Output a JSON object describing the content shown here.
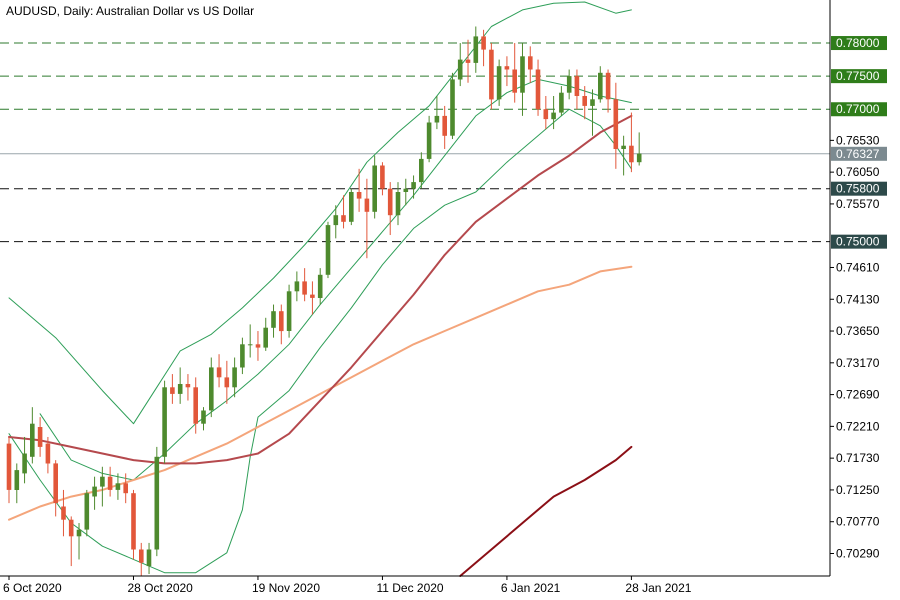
{
  "header": {
    "title": "AUDUSD, Daily:  Australian Dollar vs US Dollar"
  },
  "colors": {
    "bull": "#4e8a2e",
    "bear": "#e2573a",
    "bollinger": "#2e9e58",
    "ma_short": "#b5494d",
    "ma_mid": "#f4a57b",
    "ma_long": "#8b0f16",
    "level_line": "#2c7a2c",
    "level_tag_green": "#2f7d1a",
    "level_tag_dark": "#2d4a4a",
    "current_tag": "#7c8a90"
  },
  "chart_data": {
    "type": "candlestick",
    "symbol": "AUDUSD",
    "timeframe": "Daily",
    "ylim": [
      0.6995,
      0.7865
    ],
    "y_tick_labels": [
      "0.76530",
      "0.76050",
      "0.75570",
      "0.74610",
      "0.74130",
      "0.73650",
      "0.73170",
      "0.72690",
      "0.72210",
      "0.71730",
      "0.71250",
      "0.70770",
      "0.70290"
    ],
    "x_labels": [
      {
        "label": "6 Oct 2020",
        "index": 0
      },
      {
        "label": "28 Oct 2020",
        "index": 16
      },
      {
        "label": "19 Nov 2020",
        "index": 32
      },
      {
        "label": "11 Dec 2020",
        "index": 48
      },
      {
        "label": "6 Jan 2021",
        "index": 64
      },
      {
        "label": "28 Jan 2021",
        "index": 80
      }
    ],
    "level_lines": [
      {
        "label": "0.78000",
        "value": 0.78,
        "style": "green"
      },
      {
        "label": "0.77500",
        "value": 0.775,
        "style": "green"
      },
      {
        "label": "0.77000",
        "value": 0.77,
        "style": "green"
      },
      {
        "label": "0.75800",
        "value": 0.758,
        "style": "dark"
      },
      {
        "label": "0.75000",
        "value": 0.75,
        "style": "dark"
      }
    ],
    "current_price": {
      "label": "0.76327",
      "value": 0.76327
    },
    "candles": [
      [
        0.7195,
        0.7205,
        0.7105,
        0.7125
      ],
      [
        0.7125,
        0.7165,
        0.7105,
        0.7155
      ],
      [
        0.715,
        0.7205,
        0.7135,
        0.718
      ],
      [
        0.7175,
        0.725,
        0.7165,
        0.7225
      ],
      [
        0.722,
        0.7235,
        0.7175,
        0.719
      ],
      [
        0.7195,
        0.7205,
        0.715,
        0.7165
      ],
      [
        0.7165,
        0.717,
        0.7085,
        0.7105
      ],
      [
        0.71,
        0.7125,
        0.7055,
        0.708
      ],
      [
        0.708,
        0.7085,
        0.701,
        0.7055
      ],
      [
        0.7055,
        0.7075,
        0.702,
        0.7065
      ],
      [
        0.7065,
        0.7125,
        0.7055,
        0.712
      ],
      [
        0.7115,
        0.7145,
        0.7095,
        0.713
      ],
      [
        0.713,
        0.716,
        0.71,
        0.7145
      ],
      [
        0.7145,
        0.716,
        0.7115,
        0.7125
      ],
      [
        0.7125,
        0.715,
        0.711,
        0.7135
      ],
      [
        0.7135,
        0.715,
        0.7105,
        0.712
      ],
      [
        0.712,
        0.7125,
        0.702,
        0.7035
      ],
      [
        0.7035,
        0.7045,
        0.6995,
        0.7015
      ],
      [
        0.701,
        0.7045,
        0.6998,
        0.7035
      ],
      [
        0.7035,
        0.719,
        0.7025,
        0.7175
      ],
      [
        0.7175,
        0.729,
        0.7165,
        0.728
      ],
      [
        0.728,
        0.73,
        0.7255,
        0.727
      ],
      [
        0.727,
        0.731,
        0.7255,
        0.7285
      ],
      [
        0.7285,
        0.73,
        0.726,
        0.728
      ],
      [
        0.728,
        0.7295,
        0.721,
        0.7225
      ],
      [
        0.7225,
        0.725,
        0.7215,
        0.7245
      ],
      [
        0.7245,
        0.7325,
        0.7235,
        0.731
      ],
      [
        0.731,
        0.733,
        0.728,
        0.7295
      ],
      [
        0.7295,
        0.732,
        0.7255,
        0.728
      ],
      [
        0.728,
        0.7325,
        0.7265,
        0.731
      ],
      [
        0.731,
        0.7355,
        0.73,
        0.7345
      ],
      [
        0.7345,
        0.7375,
        0.7325,
        0.7345
      ],
      [
        0.7345,
        0.7365,
        0.732,
        0.734
      ],
      [
        0.734,
        0.7385,
        0.7335,
        0.737
      ],
      [
        0.737,
        0.7405,
        0.7355,
        0.7395
      ],
      [
        0.7395,
        0.7405,
        0.7345,
        0.7365
      ],
      [
        0.7365,
        0.7435,
        0.7355,
        0.7425
      ],
      [
        0.7425,
        0.7455,
        0.741,
        0.744
      ],
      [
        0.744,
        0.746,
        0.741,
        0.742
      ],
      [
        0.742,
        0.744,
        0.739,
        0.7415
      ],
      [
        0.7415,
        0.746,
        0.7405,
        0.745
      ],
      [
        0.745,
        0.753,
        0.7445,
        0.7525
      ],
      [
        0.7525,
        0.7555,
        0.7505,
        0.754
      ],
      [
        0.754,
        0.757,
        0.752,
        0.753
      ],
      [
        0.753,
        0.758,
        0.7525,
        0.7575
      ],
      [
        0.7575,
        0.761,
        0.7545,
        0.7565
      ],
      [
        0.7565,
        0.7595,
        0.7475,
        0.7545
      ],
      [
        0.7545,
        0.763,
        0.7535,
        0.7615
      ],
      [
        0.7615,
        0.762,
        0.757,
        0.758
      ],
      [
        0.758,
        0.759,
        0.751,
        0.754
      ],
      [
        0.754,
        0.759,
        0.7525,
        0.7575
      ],
      [
        0.7575,
        0.7595,
        0.7555,
        0.758
      ],
      [
        0.758,
        0.76,
        0.7565,
        0.759
      ],
      [
        0.759,
        0.7635,
        0.758,
        0.7625
      ],
      [
        0.7625,
        0.769,
        0.762,
        0.768
      ],
      [
        0.768,
        0.772,
        0.767,
        0.769
      ],
      [
        0.769,
        0.7705,
        0.764,
        0.766
      ],
      [
        0.766,
        0.7755,
        0.7655,
        0.7745
      ],
      [
        0.7745,
        0.78,
        0.7735,
        0.7775
      ],
      [
        0.7775,
        0.7805,
        0.774,
        0.777
      ],
      [
        0.777,
        0.7825,
        0.7755,
        0.781
      ],
      [
        0.781,
        0.782,
        0.7765,
        0.779
      ],
      [
        0.779,
        0.78,
        0.77,
        0.7715
      ],
      [
        0.7715,
        0.7775,
        0.7705,
        0.7765
      ],
      [
        0.7765,
        0.778,
        0.7735,
        0.776
      ],
      [
        0.776,
        0.78,
        0.771,
        0.7725
      ],
      [
        0.7725,
        0.78,
        0.769,
        0.778
      ],
      [
        0.778,
        0.7795,
        0.774,
        0.776
      ],
      [
        0.776,
        0.7775,
        0.769,
        0.77
      ],
      [
        0.77,
        0.772,
        0.767,
        0.7685
      ],
      [
        0.7685,
        0.772,
        0.767,
        0.7695
      ],
      [
        0.7695,
        0.7735,
        0.769,
        0.7725
      ],
      [
        0.7725,
        0.776,
        0.7715,
        0.775
      ],
      [
        0.775,
        0.776,
        0.77,
        0.772
      ],
      [
        0.772,
        0.7735,
        0.7685,
        0.7705
      ],
      [
        0.7705,
        0.773,
        0.766,
        0.7715
      ],
      [
        0.7715,
        0.7765,
        0.771,
        0.7755
      ],
      [
        0.7755,
        0.776,
        0.7695,
        0.7715
      ],
      [
        0.7715,
        0.774,
        0.761,
        0.764
      ],
      [
        0.764,
        0.766,
        0.76,
        0.7645
      ],
      [
        0.7645,
        0.7695,
        0.7605,
        0.762
      ],
      [
        0.762,
        0.7665,
        0.7615,
        0.7633
      ]
    ],
    "indicators": {
      "bollinger_upper": [
        [
          0,
          0.7415
        ],
        [
          6,
          0.7355
        ],
        [
          12,
          0.7275
        ],
        [
          16,
          0.7225
        ],
        [
          19,
          0.728
        ],
        [
          22,
          0.7335
        ],
        [
          26,
          0.736
        ],
        [
          30,
          0.74
        ],
        [
          34,
          0.7445
        ],
        [
          38,
          0.7495
        ],
        [
          42,
          0.755
        ],
        [
          46,
          0.762
        ],
        [
          50,
          0.7665
        ],
        [
          54,
          0.7705
        ],
        [
          58,
          0.7765
        ],
        [
          62,
          0.7825
        ],
        [
          66,
          0.785
        ],
        [
          70,
          0.786
        ],
        [
          74,
          0.7862
        ],
        [
          78,
          0.7845
        ],
        [
          80,
          0.785
        ]
      ],
      "bollinger_middle": [
        [
          4,
          0.724
        ],
        [
          8,
          0.717
        ],
        [
          12,
          0.715
        ],
        [
          16,
          0.714
        ],
        [
          20,
          0.718
        ],
        [
          24,
          0.7225
        ],
        [
          28,
          0.726
        ],
        [
          32,
          0.73
        ],
        [
          36,
          0.7345
        ],
        [
          40,
          0.7405
        ],
        [
          44,
          0.746
        ],
        [
          48,
          0.7515
        ],
        [
          52,
          0.757
        ],
        [
          56,
          0.763
        ],
        [
          60,
          0.769
        ],
        [
          64,
          0.7725
        ],
        [
          68,
          0.7745
        ],
        [
          72,
          0.7735
        ],
        [
          76,
          0.772
        ],
        [
          78,
          0.7715
        ],
        [
          80,
          0.771
        ]
      ],
      "bollinger_lower": [
        [
          0,
          0.721
        ],
        [
          4,
          0.714
        ],
        [
          8,
          0.7075
        ],
        [
          12,
          0.704
        ],
        [
          16,
          0.702
        ],
        [
          20,
          0.7
        ],
        [
          24,
          0.7
        ],
        [
          28,
          0.703
        ],
        [
          30,
          0.7095
        ],
        [
          31,
          0.7175
        ],
        [
          32,
          0.7235
        ],
        [
          36,
          0.7275
        ],
        [
          40,
          0.734
        ],
        [
          44,
          0.74
        ],
        [
          48,
          0.7465
        ],
        [
          52,
          0.752
        ],
        [
          56,
          0.7555
        ],
        [
          60,
          0.7575
        ],
        [
          64,
          0.762
        ],
        [
          68,
          0.766
        ],
        [
          72,
          0.77
        ],
        [
          76,
          0.7675
        ],
        [
          78,
          0.7645
        ],
        [
          80,
          0.761
        ]
      ],
      "ma_short": [
        [
          0,
          0.7205
        ],
        [
          4,
          0.72
        ],
        [
          8,
          0.719
        ],
        [
          12,
          0.718
        ],
        [
          16,
          0.717
        ],
        [
          20,
          0.7165
        ],
        [
          24,
          0.7165
        ],
        [
          28,
          0.717
        ],
        [
          32,
          0.718
        ],
        [
          36,
          0.721
        ],
        [
          40,
          0.726
        ],
        [
          44,
          0.731
        ],
        [
          48,
          0.7365
        ],
        [
          52,
          0.742
        ],
        [
          56,
          0.748
        ],
        [
          60,
          0.753
        ],
        [
          64,
          0.7565
        ],
        [
          68,
          0.76
        ],
        [
          72,
          0.763
        ],
        [
          76,
          0.7665
        ],
        [
          80,
          0.769
        ]
      ],
      "ma_mid": [
        [
          0,
          0.708
        ],
        [
          4,
          0.71
        ],
        [
          8,
          0.7115
        ],
        [
          12,
          0.7125
        ],
        [
          16,
          0.714
        ],
        [
          20,
          0.7155
        ],
        [
          24,
          0.7175
        ],
        [
          28,
          0.7195
        ],
        [
          32,
          0.722
        ],
        [
          36,
          0.7245
        ],
        [
          40,
          0.727
        ],
        [
          44,
          0.7295
        ],
        [
          48,
          0.732
        ],
        [
          52,
          0.7345
        ],
        [
          56,
          0.7365
        ],
        [
          60,
          0.7385
        ],
        [
          64,
          0.7405
        ],
        [
          68,
          0.7425
        ],
        [
          72,
          0.7435
        ],
        [
          76,
          0.7455
        ],
        [
          80,
          0.7462
        ]
      ],
      "ma_long": [
        [
          58,
          0.6995
        ],
        [
          62,
          0.7035
        ],
        [
          66,
          0.7075
        ],
        [
          70,
          0.7115
        ],
        [
          74,
          0.714
        ],
        [
          78,
          0.717
        ],
        [
          80,
          0.719
        ]
      ]
    }
  }
}
